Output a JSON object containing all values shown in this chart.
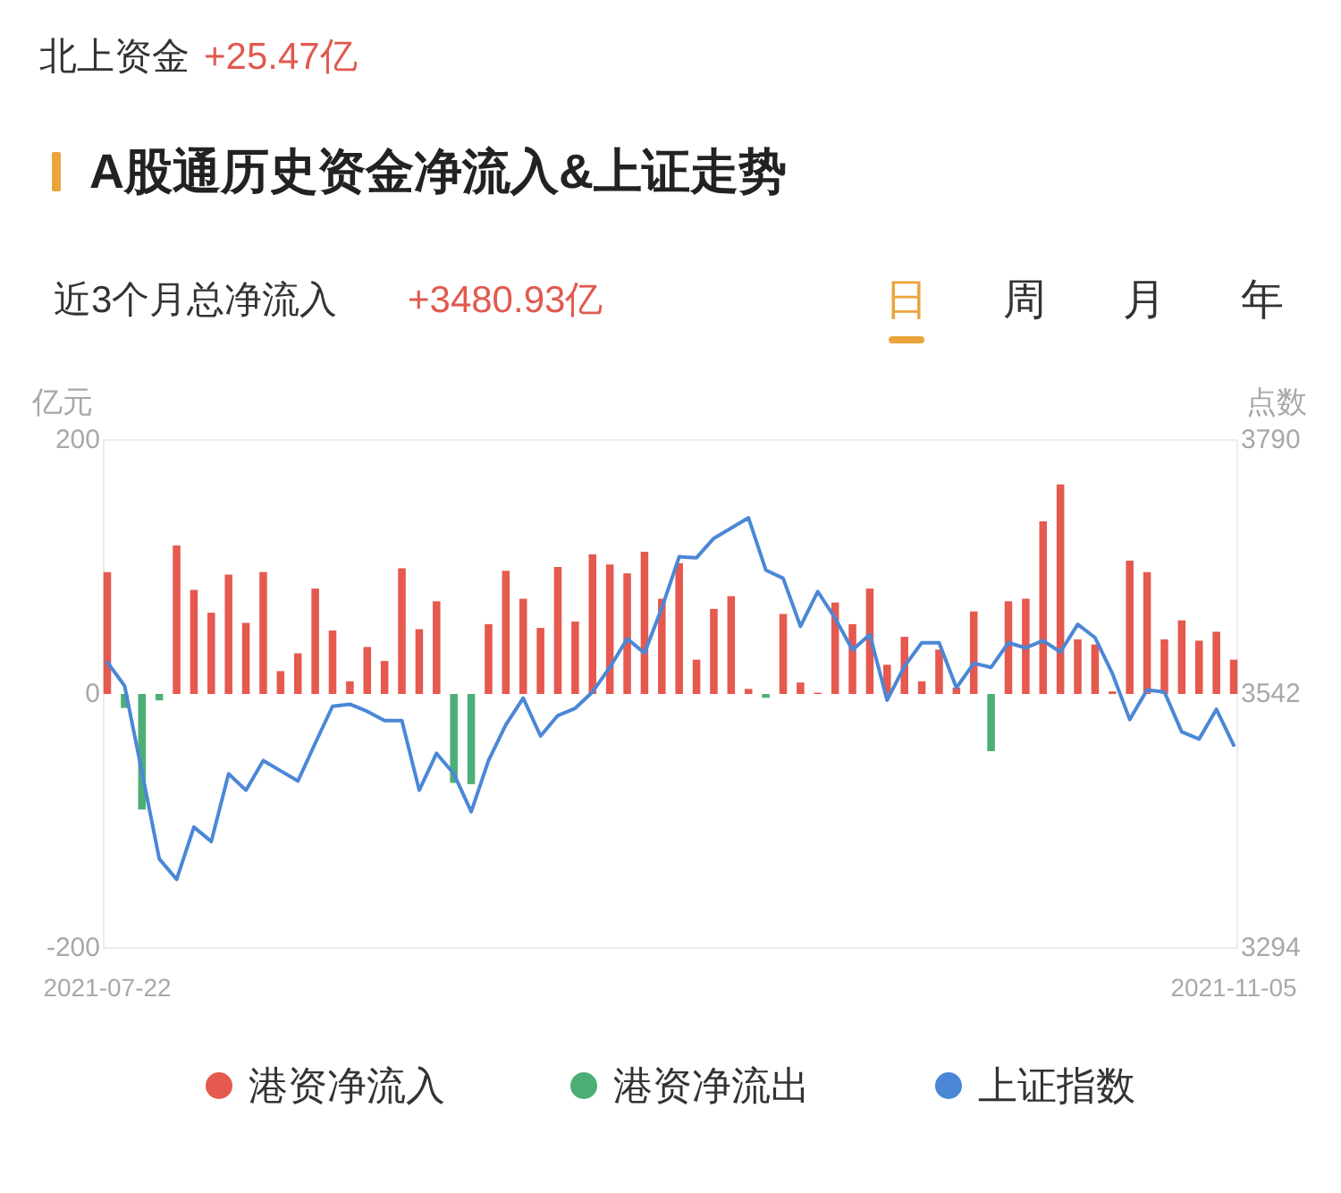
{
  "chart_data": {
    "type": "bar",
    "title": "A股通历史资金净流入&上证走势",
    "subtitle": "近3个月总净流入",
    "ylabel": "亿元",
    "y2label": "点数",
    "categories": [
      "2021-07-22",
      null,
      null,
      null,
      null,
      null,
      null,
      null,
      null,
      null,
      null,
      null,
      null,
      null,
      null,
      null,
      null,
      null,
      null,
      null,
      null,
      null,
      null,
      null,
      null,
      null,
      null,
      null,
      null,
      null,
      null,
      null,
      null,
      null,
      null,
      null,
      null,
      null,
      null,
      null,
      null,
      null,
      null,
      null,
      null,
      null,
      null,
      null,
      null,
      null,
      null,
      null,
      null,
      null,
      null,
      null,
      null,
      null,
      null,
      null,
      null,
      null,
      null,
      null,
      null,
      "2021-11-05"
    ],
    "series": [
      {
        "name": "港资净流入",
        "color": "#e5594f",
        "values": [
          96,
          null,
          null,
          null,
          117,
          82,
          64,
          94,
          56,
          96,
          18,
          32,
          83,
          50,
          10,
          37,
          26,
          99,
          51,
          73,
          null,
          null,
          55,
          97,
          75,
          52,
          100,
          57,
          110,
          102,
          95,
          112,
          75,
          103,
          27,
          67,
          77,
          4,
          null,
          63,
          9,
          1,
          72,
          55,
          83,
          23,
          45,
          10,
          35,
          5,
          65,
          null,
          73,
          75,
          136,
          165,
          43,
          39,
          2,
          105,
          96,
          43,
          58,
          42,
          49,
          27
        ]
      },
      {
        "name": "港资净流出",
        "color": "#4caf76",
        "values": [
          null,
          -11,
          -91,
          -5,
          null,
          null,
          null,
          null,
          null,
          null,
          null,
          null,
          null,
          null,
          null,
          null,
          null,
          null,
          null,
          null,
          -70,
          -71,
          null,
          null,
          null,
          null,
          null,
          null,
          null,
          null,
          null,
          null,
          null,
          null,
          null,
          null,
          null,
          null,
          -3,
          null,
          null,
          null,
          null,
          null,
          null,
          null,
          null,
          null,
          null,
          null,
          null,
          -45,
          null,
          null,
          null,
          null,
          null,
          null,
          null,
          null,
          null,
          null,
          null,
          null,
          null,
          null
        ]
      },
      {
        "name": "上证指数",
        "type": "line",
        "axis": "y2",
        "color": "#4b87d6",
        "values": [
          3573,
          3550,
          3466,
          3381,
          3361,
          3412,
          3398,
          3464,
          3448,
          3477,
          3467,
          3457,
          3494,
          3530,
          3532,
          3525,
          3516,
          3516,
          3448,
          3484,
          3464,
          3427,
          3477,
          3512,
          3538,
          3501,
          3521,
          3528,
          3544,
          3568,
          3596,
          3582,
          3626,
          3676,
          3675,
          3694,
          3704,
          3714,
          3663,
          3655,
          3608,
          3642,
          3616,
          3585,
          3600,
          3536,
          3569,
          3592,
          3592,
          3548,
          3572,
          3568,
          3592,
          3587,
          3594,
          3583,
          3610,
          3597,
          3562,
          3517,
          3546,
          3544,
          3505,
          3498,
          3527,
          3492
        ]
      }
    ],
    "stacked": true,
    "ylim": [
      -200,
      200
    ],
    "yticks": [
      -200,
      0,
      200
    ],
    "y2lim": [
      3294,
      3790
    ],
    "y2ticks": [
      3294,
      3542,
      3790
    ],
    "legend": "bottom",
    "annotations": [
      "北上资金",
      "+25.47亿",
      "+3480.93亿",
      "日",
      "周",
      "月",
      "年"
    ]
  }
}
